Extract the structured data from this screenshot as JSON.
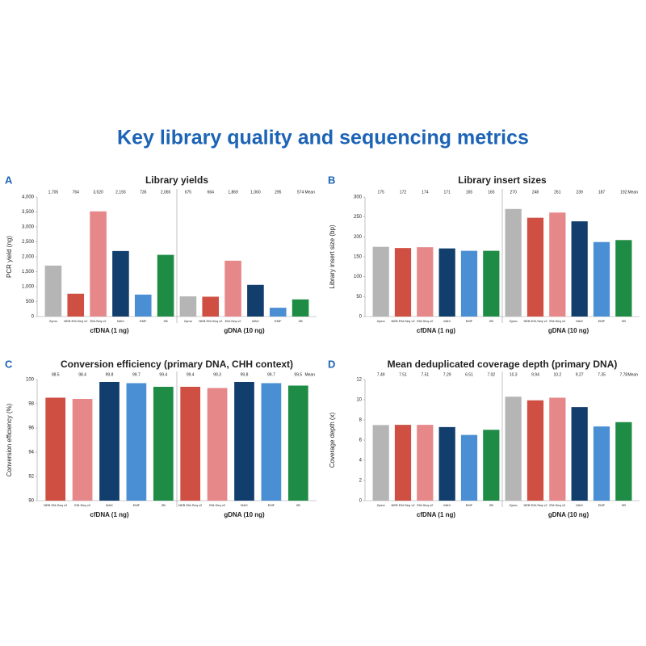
{
  "title": "Key library quality and sequencing metrics",
  "chart_data": [
    {
      "type": "bar",
      "panel": "A",
      "title": "Library yields",
      "y_label": "PCR yield (ng)",
      "mean_label": "Mean",
      "groups": [
        "cfDNA (1 ng)",
        "gDNA (10 ng)"
      ],
      "categories": [
        "Zymo",
        "NEB EM-Seq v2",
        "EM-Seq v2",
        "MAX",
        "EMF",
        "ZB",
        "Zymo",
        "NEB EM-Seq v2",
        "EM-Seq v2",
        "MAX",
        "EMF",
        "ZB"
      ],
      "values": [
        1705,
        764,
        3520,
        2193,
        735,
        2065,
        675,
        664,
        1869,
        1060,
        295,
        574
      ],
      "value_labels": [
        "1,705",
        "764",
        "3,520",
        "2,193",
        "735",
        "2,065",
        "675",
        "664",
        "1,869",
        "1,060",
        "295",
        "574"
      ],
      "colors": [
        "#b5b5b5",
        "#cf4f42",
        "#e6888a",
        "#123e6e",
        "#4a8fd4",
        "#1e8c45",
        "#b5b5b5",
        "#cf4f42",
        "#e6888a",
        "#123e6e",
        "#4a8fd4",
        "#1e8c45"
      ],
      "ylim": [
        0,
        4000
      ],
      "yticks": [
        0,
        500,
        {
          "value": 1000,
          "label": "1,000"
        },
        {
          "value": 1500,
          "label": "1,500"
        },
        {
          "value": 2000,
          "label": "2,000"
        },
        {
          "value": 2500,
          "label": "2,500"
        },
        {
          "value": 3000,
          "label": "3,000"
        },
        {
          "value": 3500,
          "label": "3,500"
        },
        {
          "value": 4000,
          "label": "4,000"
        }
      ]
    },
    {
      "type": "bar",
      "panel": "B",
      "title": "Library insert sizes",
      "y_label": "Library insert size (bp)",
      "mean_label": "Mean",
      "groups": [
        "cfDNA (1 ng)",
        "gDNA (10 ng)"
      ],
      "categories": [
        "Zymo",
        "NEB EM-Seq v2",
        "EM-Seq v2",
        "MAX",
        "EMF",
        "ZB",
        "Zymo",
        "NEB EM-Seq v2",
        "EM-Seq v2",
        "MAX",
        "EMF",
        "ZB"
      ],
      "values": [
        175,
        172,
        174,
        171,
        165,
        165,
        270,
        248,
        261,
        239,
        187,
        192
      ],
      "colors": [
        "#b5b5b5",
        "#cf4f42",
        "#e6888a",
        "#123e6e",
        "#4a8fd4",
        "#1e8c45",
        "#b5b5b5",
        "#cf4f42",
        "#e6888a",
        "#123e6e",
        "#4a8fd4",
        "#1e8c45"
      ],
      "ylim": [
        0,
        300
      ],
      "yticks": [
        0,
        50,
        100,
        150,
        200,
        250,
        300
      ]
    },
    {
      "type": "bar",
      "panel": "C",
      "title": "Conversion efficiency (primary DNA, CHH context)",
      "y_label": "Conversion efficiency (%)",
      "mean_label": "Mean",
      "groups": [
        "cfDNA (1 ng)",
        "gDNA (10 ng)"
      ],
      "categories": [
        "NEB EM-Seq v2",
        "EM-Seq v2",
        "MAX",
        "EMF",
        "ZB",
        "NEB EM-Seq v2",
        "EM-Seq v2",
        "MAX",
        "EMF",
        "ZB"
      ],
      "values": [
        98.5,
        98.4,
        99.8,
        99.7,
        99.4,
        99.4,
        99.3,
        99.8,
        99.7,
        99.5
      ],
      "colors": [
        "#cf4f42",
        "#e6888a",
        "#123e6e",
        "#4a8fd4",
        "#1e8c45",
        "#cf4f42",
        "#e6888a",
        "#123e6e",
        "#4a8fd4",
        "#1e8c45"
      ],
      "ylim": [
        90,
        100
      ],
      "yticks": [
        90,
        92,
        94,
        96,
        98,
        100
      ]
    },
    {
      "type": "bar",
      "panel": "D",
      "title": "Mean deduplicated coverage depth (primary DNA)",
      "y_label": "Coverage depth (x)",
      "mean_label": "Mean",
      "groups": [
        "cfDNA (1 ng)",
        "gDNA (10 ng)"
      ],
      "categories": [
        "Zymo",
        "NEB EM-Seq v2",
        "EM-Seq v2",
        "MAX",
        "EMF",
        "ZB",
        "Zymo",
        "NEB EM-Seq v2",
        "EM-Seq v2",
        "MAX",
        "EMF",
        "ZB"
      ],
      "values": [
        7.49,
        7.51,
        7.51,
        7.29,
        6.51,
        7.02,
        10.3,
        9.94,
        10.2,
        9.27,
        7.35,
        7.78
      ],
      "colors": [
        "#b5b5b5",
        "#cf4f42",
        "#e6888a",
        "#123e6e",
        "#4a8fd4",
        "#1e8c45",
        "#b5b5b5",
        "#cf4f42",
        "#e6888a",
        "#123e6e",
        "#4a8fd4",
        "#1e8c45"
      ],
      "ylim": [
        0,
        12
      ],
      "yticks": [
        0,
        2,
        4,
        6,
        8,
        10,
        12
      ]
    }
  ]
}
